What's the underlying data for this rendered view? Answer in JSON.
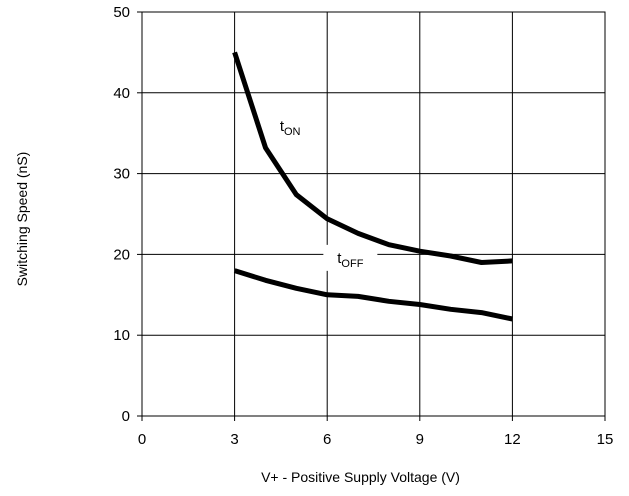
{
  "chart_data": {
    "type": "line",
    "title": "",
    "xlabel": "V+ -  Positive Supply Voltage (V)",
    "ylabel": "Switching Speed (nS)",
    "xlim": [
      0,
      15
    ],
    "ylim": [
      0,
      50
    ],
    "x_ticks": [
      0,
      3,
      6,
      9,
      12,
      15
    ],
    "y_ticks": [
      0,
      10,
      20,
      30,
      40,
      50
    ],
    "grid": true,
    "series": [
      {
        "name": "tON",
        "label_main": "t",
        "label_sub": "ON",
        "x": [
          3,
          4,
          5,
          6,
          7,
          8,
          9,
          10,
          11,
          12
        ],
        "y": [
          45,
          33.2,
          27.4,
          24.4,
          22.6,
          21.2,
          20.4,
          19.8,
          19.0,
          19.2
        ],
        "color": "#000000"
      },
      {
        "name": "tOFF",
        "label_main": "t",
        "label_sub": "OFF",
        "x": [
          3,
          4,
          5,
          6,
          7,
          8,
          9,
          10,
          11,
          12
        ],
        "y": [
          18.0,
          16.8,
          15.8,
          15.0,
          14.8,
          14.2,
          13.8,
          13.2,
          12.8,
          12.0
        ],
        "color": "#000000"
      }
    ]
  }
}
